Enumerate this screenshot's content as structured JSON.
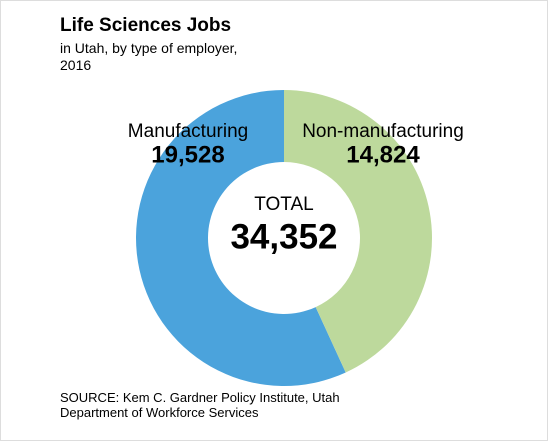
{
  "chart_data": {
    "type": "pie",
    "title": "Life Sciences Jobs",
    "subtitle": "in Utah, by type of employer, 2016",
    "categories": [
      "Manufacturing",
      "Non-manufacturing"
    ],
    "values": [
      19528,
      14824
    ],
    "value_labels": [
      "19,528",
      "14,824"
    ],
    "colors": [
      "#4ba3dc",
      "#bdd99c"
    ],
    "donut": true,
    "center_label": "TOTAL",
    "total": {
      "value": 34352,
      "label": "34,352"
    },
    "source": "SOURCE: Kem C. Gardner Policy Institute, Utah Department of Workforce Services"
  }
}
